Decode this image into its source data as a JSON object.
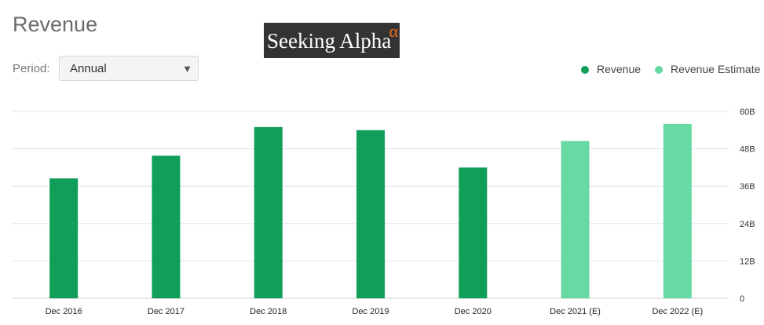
{
  "header": {
    "title": "Revenue"
  },
  "logo": {
    "text": "Seeking Alpha",
    "alpha": "α"
  },
  "period": {
    "label": "Period:",
    "selected": "Annual",
    "caret": "▼"
  },
  "legend": [
    {
      "label": "Revenue",
      "color": "#109e59"
    },
    {
      "label": "Revenue Estimate",
      "color": "#67d9a3"
    }
  ],
  "chart_data": {
    "type": "bar",
    "categories": [
      "Dec 2016",
      "Dec 2017",
      "Dec 2018",
      "Dec 2019",
      "Dec 2020",
      "Dec 2021 (E)",
      "Dec 2022 (E)"
    ],
    "series": [
      {
        "name": "Revenue",
        "values": [
          38.5,
          45.8,
          55.0,
          54.0,
          42.0,
          null,
          null
        ],
        "color": "#109e59"
      },
      {
        "name": "Revenue Estimate",
        "values": [
          null,
          null,
          null,
          null,
          null,
          50.5,
          56.0
        ],
        "color": "#67d9a3"
      }
    ],
    "yticks": [
      "0",
      "12B",
      "24B",
      "36B",
      "48B",
      "60B"
    ],
    "ylim": [
      0,
      60
    ],
    "y_axis_position": "right",
    "grid": true,
    "legend_position": "top-right"
  }
}
